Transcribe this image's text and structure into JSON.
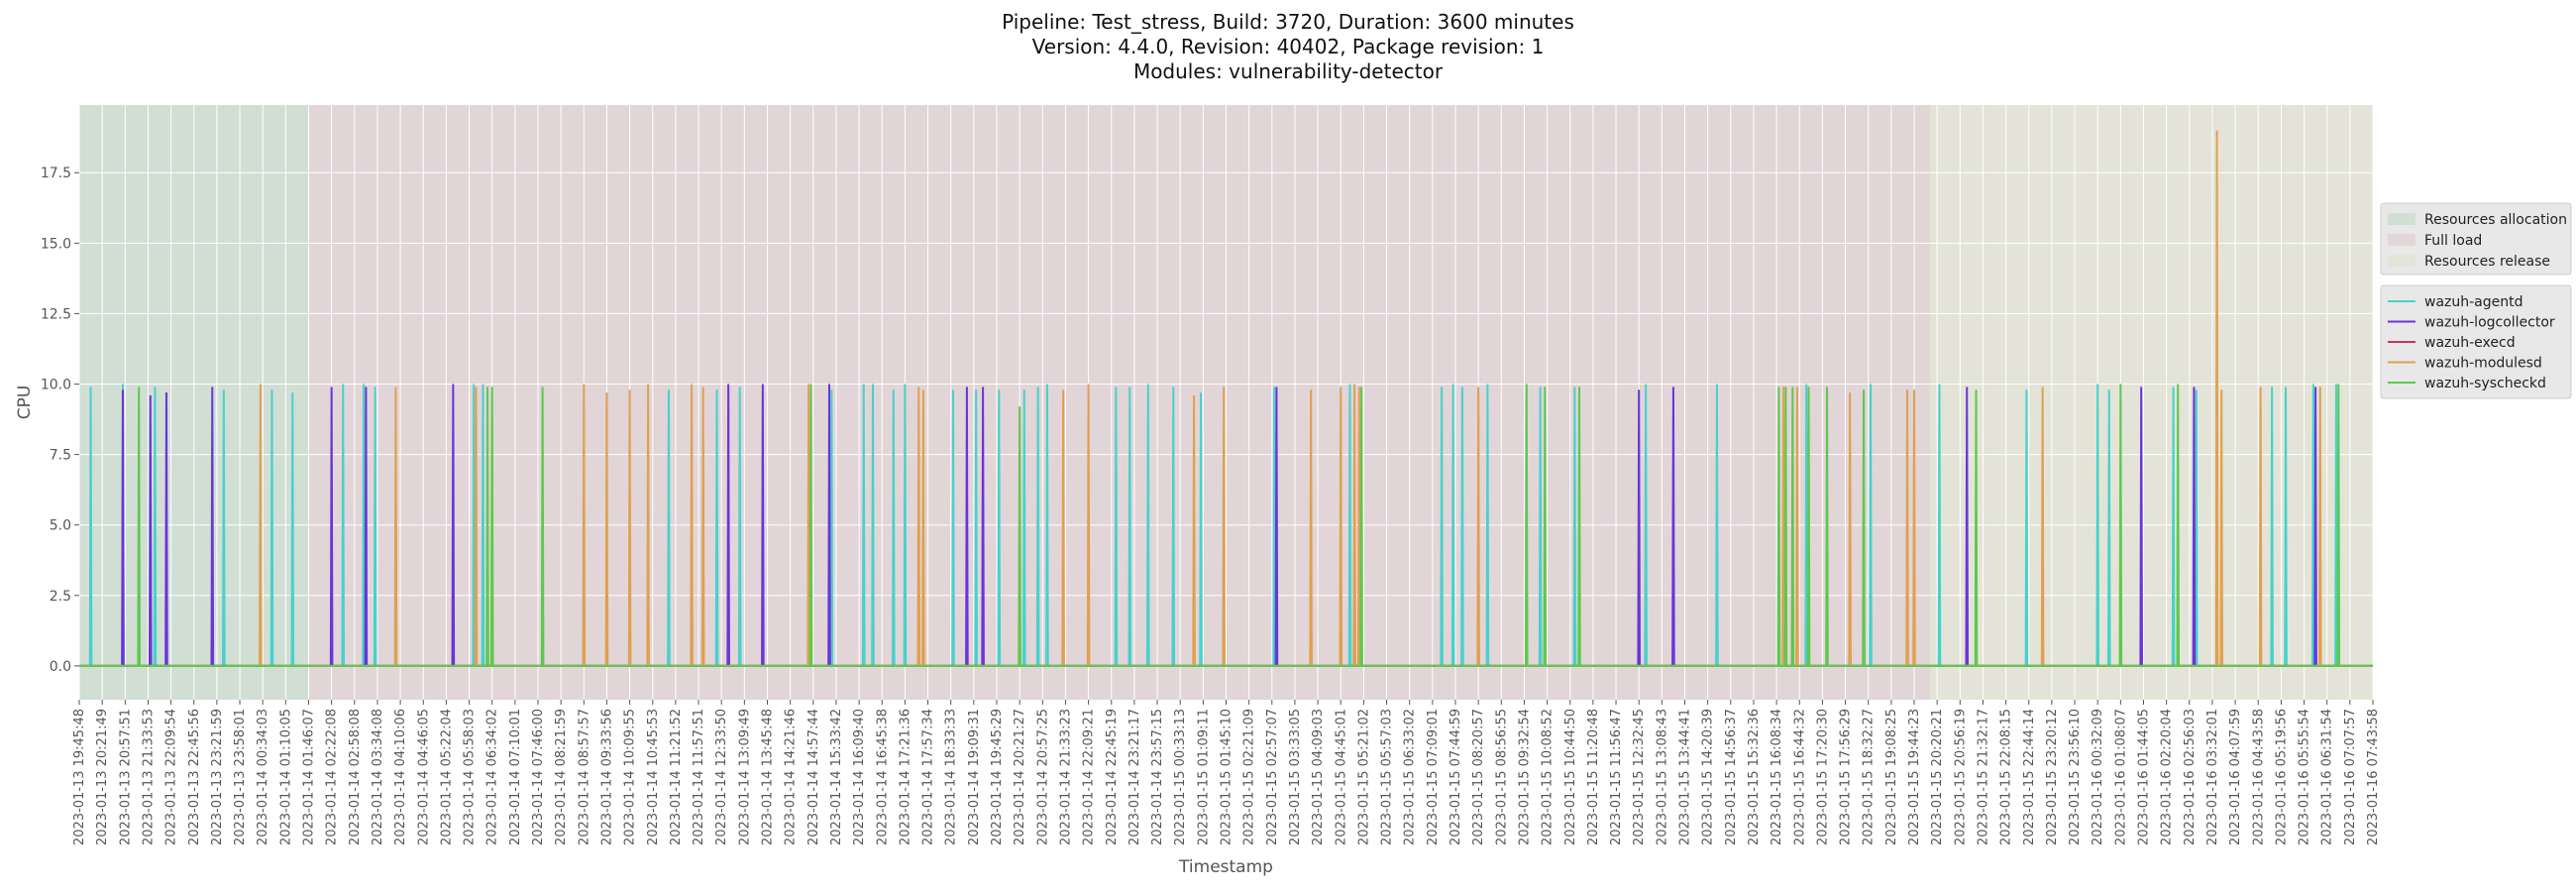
{
  "chart_data": {
    "type": "line",
    "title_lines": [
      "Pipeline: Test_stress, Build: 3720, Duration: 3600 minutes",
      "Version: 4.4.0, Revision: 40402, Package revision: 1",
      "Modules: vulnerability-detector"
    ],
    "xlabel": "Timestamp",
    "ylabel": "CPU",
    "ylim": [
      -1.2,
      19.9
    ],
    "yticks": [
      "0.0",
      "2.5",
      "5.0",
      "7.5",
      "10.0",
      "12.5",
      "15.0",
      "17.5"
    ],
    "grid": true,
    "x_ticks": [
      "2023-01-13 19:45:48",
      "2023-01-13 20:21:49",
      "2023-01-13 20:57:51",
      "2023-01-13 21:33:53",
      "2023-01-13 22:09:54",
      "2023-01-13 22:45:56",
      "2023-01-13 23:21:59",
      "2023-01-13 23:58:01",
      "2023-01-14 00:34:03",
      "2023-01-14 01:10:05",
      "2023-01-14 01:46:07",
      "2023-01-14 02:22:08",
      "2023-01-14 02:58:08",
      "2023-01-14 03:34:08",
      "2023-01-14 04:10:06",
      "2023-01-14 04:46:05",
      "2023-01-14 05:22:04",
      "2023-01-14 05:58:03",
      "2023-01-14 06:34:02",
      "2023-01-14 07:10:01",
      "2023-01-14 07:46:00",
      "2023-01-14 08:21:59",
      "2023-01-14 08:57:57",
      "2023-01-14 09:33:56",
      "2023-01-14 10:09:55",
      "2023-01-14 10:45:53",
      "2023-01-14 11:21:52",
      "2023-01-14 11:57:51",
      "2023-01-14 12:33:50",
      "2023-01-14 13:09:49",
      "2023-01-14 13:45:48",
      "2023-01-14 14:21:46",
      "2023-01-14 14:57:44",
      "2023-01-14 15:33:42",
      "2023-01-14 16:09:40",
      "2023-01-14 16:45:38",
      "2023-01-14 17:21:36",
      "2023-01-14 17:57:34",
      "2023-01-14 18:33:33",
      "2023-01-14 19:09:31",
      "2023-01-14 19:45:29",
      "2023-01-14 20:21:27",
      "2023-01-14 20:57:25",
      "2023-01-14 21:33:23",
      "2023-01-14 22:09:21",
      "2023-01-14 22:45:19",
      "2023-01-14 23:21:17",
      "2023-01-14 23:57:15",
      "2023-01-15 00:33:13",
      "2023-01-15 01:09:11",
      "2023-01-15 01:45:10",
      "2023-01-15 02:21:09",
      "2023-01-15 02:57:07",
      "2023-01-15 03:33:05",
      "2023-01-15 04:09:03",
      "2023-01-15 04:45:01",
      "2023-01-15 05:21:02",
      "2023-01-15 05:57:03",
      "2023-01-15 06:33:02",
      "2023-01-15 07:09:01",
      "2023-01-15 07:44:59",
      "2023-01-15 08:20:57",
      "2023-01-15 08:56:55",
      "2023-01-15 09:32:54",
      "2023-01-15 10:08:52",
      "2023-01-15 10:44:50",
      "2023-01-15 11:20:48",
      "2023-01-15 11:56:47",
      "2023-01-15 12:32:45",
      "2023-01-15 13:08:43",
      "2023-01-15 13:44:41",
      "2023-01-15 14:20:39",
      "2023-01-15 14:56:37",
      "2023-01-15 15:32:36",
      "2023-01-15 16:08:34",
      "2023-01-15 16:44:32",
      "2023-01-15 17:20:30",
      "2023-01-15 17:56:29",
      "2023-01-15 18:32:27",
      "2023-01-15 19:08:25",
      "2023-01-15 19:44:23",
      "2023-01-15 20:20:21",
      "2023-01-15 20:56:19",
      "2023-01-15 21:32:17",
      "2023-01-15 22:08:15",
      "2023-01-15 22:44:14",
      "2023-01-15 23:20:12",
      "2023-01-15 23:56:10",
      "2023-01-16 00:32:09",
      "2023-01-16 01:08:07",
      "2023-01-16 01:44:05",
      "2023-01-16 02:20:04",
      "2023-01-16 02:56:03",
      "2023-01-16 03:32:01",
      "2023-01-16 04:07:59",
      "2023-01-16 04:43:58",
      "2023-01-16 05:19:56",
      "2023-01-16 05:55:54",
      "2023-01-16 06:31:54",
      "2023-01-16 07:07:57",
      "2023-01-16 07:43:58"
    ],
    "xlim_index": [
      0,
      100
    ],
    "phases": [
      {
        "name": "Resources allocation",
        "start": 0,
        "end": 10,
        "color": "#b7d4be"
      },
      {
        "name": "Full load",
        "start": 10,
        "end": 80.7,
        "color": "#dcc1c6"
      },
      {
        "name": "Resources release",
        "start": 80.7,
        "end": 100,
        "color": "#e0e2c5"
      }
    ],
    "series": [
      {
        "name": "wazuh-agentd",
        "color": "#48d1cc",
        "spikes": [
          [
            0.5,
            9.9
          ],
          [
            1.9,
            10.0
          ],
          [
            3.3,
            9.9
          ],
          [
            6.3,
            9.8
          ],
          [
            8.4,
            9.8
          ],
          [
            9.3,
            9.7
          ],
          [
            11.5,
            10.0
          ],
          [
            12.4,
            10.0
          ],
          [
            12.9,
            9.9
          ],
          [
            17.2,
            10.0
          ],
          [
            17.6,
            10.0
          ],
          [
            25.7,
            9.8
          ],
          [
            27.8,
            9.8
          ],
          [
            28.8,
            9.9
          ],
          [
            32.8,
            9.8
          ],
          [
            34.2,
            10.0
          ],
          [
            34.6,
            10.0
          ],
          [
            35.5,
            9.8
          ],
          [
            36.0,
            10.0
          ],
          [
            38.1,
            9.8
          ],
          [
            39.1,
            9.8
          ],
          [
            40.1,
            9.8
          ],
          [
            41.2,
            9.8
          ],
          [
            41.8,
            9.9
          ],
          [
            42.2,
            10.0
          ],
          [
            45.2,
            9.9
          ],
          [
            45.8,
            9.9
          ],
          [
            46.6,
            10.0
          ],
          [
            47.7,
            9.9
          ],
          [
            48.9,
            9.7
          ],
          [
            52.1,
            9.9
          ],
          [
            55.4,
            10.0
          ],
          [
            59.4,
            9.9
          ],
          [
            59.9,
            10.0
          ],
          [
            60.3,
            9.9
          ],
          [
            61.4,
            10.0
          ],
          [
            63.7,
            9.9
          ],
          [
            65.2,
            9.9
          ],
          [
            68.3,
            10.0
          ],
          [
            71.4,
            10.0
          ],
          [
            75.3,
            10.0
          ],
          [
            78.1,
            10.0
          ],
          [
            81.1,
            10.0
          ],
          [
            84.9,
            9.8
          ],
          [
            88.0,
            10.0
          ],
          [
            88.5,
            9.8
          ],
          [
            91.3,
            9.9
          ],
          [
            92.3,
            9.8
          ],
          [
            95.6,
            9.9
          ],
          [
            96.2,
            9.9
          ],
          [
            97.4,
            10.0
          ],
          [
            98.4,
            10.0
          ]
        ]
      },
      {
        "name": "wazuh-logcollector",
        "color": "#6a35d9",
        "spikes": [
          [
            1.9,
            9.8
          ],
          [
            3.1,
            9.6
          ],
          [
            3.8,
            9.7
          ],
          [
            5.8,
            9.9
          ],
          [
            11.0,
            9.9
          ],
          [
            12.5,
            9.9
          ],
          [
            16.3,
            10.0
          ],
          [
            28.3,
            10.0
          ],
          [
            29.8,
            10.0
          ],
          [
            32.7,
            10.0
          ],
          [
            38.7,
            9.9
          ],
          [
            39.4,
            9.9
          ],
          [
            52.2,
            9.9
          ],
          [
            68.0,
            9.8
          ],
          [
            69.5,
            9.9
          ],
          [
            82.3,
            9.9
          ],
          [
            89.9,
            9.9
          ],
          [
            92.2,
            9.9
          ],
          [
            97.5,
            9.9
          ]
        ]
      },
      {
        "name": "wazuh-execd",
        "color": "#c0385d",
        "spikes": []
      },
      {
        "name": "wazuh-modulesd",
        "color": "#e0a050",
        "spikes": [
          [
            7.9,
            10.0
          ],
          [
            13.8,
            9.9
          ],
          [
            17.3,
            9.9
          ],
          [
            22.0,
            10.0
          ],
          [
            23.0,
            9.7
          ],
          [
            24.0,
            9.8
          ],
          [
            24.8,
            10.0
          ],
          [
            26.7,
            10.0
          ],
          [
            27.2,
            9.9
          ],
          [
            31.8,
            10.0
          ],
          [
            36.6,
            9.9
          ],
          [
            36.8,
            9.8
          ],
          [
            42.9,
            9.8
          ],
          [
            44.0,
            10.0
          ],
          [
            48.6,
            9.6
          ],
          [
            49.9,
            9.9
          ],
          [
            53.7,
            9.8
          ],
          [
            55.0,
            9.9
          ],
          [
            55.6,
            10.0
          ],
          [
            55.8,
            9.9
          ],
          [
            61.0,
            9.9
          ],
          [
            74.3,
            9.9
          ],
          [
            74.9,
            9.9
          ],
          [
            77.2,
            9.7
          ],
          [
            79.7,
            9.8
          ],
          [
            80.0,
            9.8
          ],
          [
            85.6,
            9.9
          ],
          [
            93.2,
            19.0
          ],
          [
            93.4,
            9.8
          ],
          [
            95.1,
            9.9
          ],
          [
            97.7,
            9.9
          ]
        ]
      },
      {
        "name": "wazuh-syscheckd",
        "color": "#5ec84e",
        "spikes": [
          [
            2.6,
            9.9
          ],
          [
            17.8,
            9.9
          ],
          [
            18.0,
            9.9
          ],
          [
            20.2,
            9.9
          ],
          [
            31.9,
            10.0
          ],
          [
            41.0,
            9.2
          ],
          [
            55.9,
            9.9
          ],
          [
            63.1,
            10.0
          ],
          [
            63.9,
            9.9
          ],
          [
            65.4,
            9.9
          ],
          [
            74.1,
            9.9
          ],
          [
            74.4,
            9.9
          ],
          [
            74.7,
            9.9
          ],
          [
            75.4,
            9.9
          ],
          [
            76.2,
            9.9
          ],
          [
            77.8,
            9.8
          ],
          [
            82.7,
            9.8
          ],
          [
            89.0,
            10.0
          ],
          [
            91.5,
            10.0
          ],
          [
            98.5,
            10.0
          ]
        ]
      }
    ],
    "legends": {
      "phases": [
        "Resources allocation",
        "Full load",
        "Resources release"
      ],
      "series": [
        "wazuh-agentd",
        "wazuh-logcollector",
        "wazuh-execd",
        "wazuh-modulesd",
        "wazuh-syscheckd"
      ],
      "placement": "right"
    }
  }
}
